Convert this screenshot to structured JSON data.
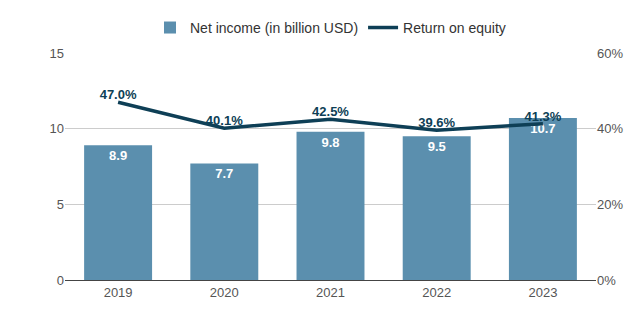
{
  "chart_data": {
    "type": "bar",
    "categories": [
      "2019",
      "2020",
      "2021",
      "2022",
      "2023"
    ],
    "series": [
      {
        "name": "Net income (in billion USD)",
        "type": "bar",
        "color": "#5b8fae",
        "values": [
          8.9,
          7.7,
          9.8,
          9.5,
          10.7
        ]
      },
      {
        "name": "Return on equity",
        "type": "line",
        "axis": "y2",
        "color": "#0e3f56",
        "values": [
          47.0,
          40.1,
          42.5,
          39.6,
          41.3
        ],
        "value_labels": [
          "47.0%",
          "40.1%",
          "42.5%",
          "39.6%",
          "41.3%"
        ]
      }
    ],
    "ylim": [
      0,
      15
    ],
    "yticks": [
      0,
      5,
      10,
      15
    ],
    "y2lim": [
      0,
      60
    ],
    "y2ticks": [
      {
        "value": 0,
        "label": "0%"
      },
      {
        "value": 20,
        "label": "20%"
      },
      {
        "value": 40,
        "label": "40%"
      },
      {
        "value": 60,
        "label": "60%"
      }
    ],
    "grid": true,
    "legend": "top",
    "data_labels": true
  }
}
